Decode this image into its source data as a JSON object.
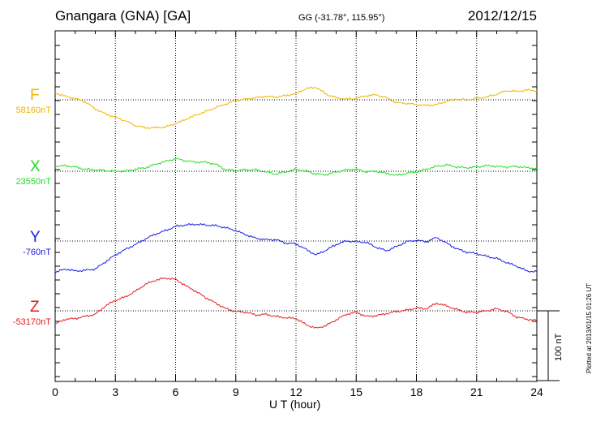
{
  "header": {
    "station": "Gnangara (GNA)  [GA]",
    "coords": "GG (-31.78°, 115.95°)",
    "date": "2012/12/15"
  },
  "credit": "Plotted at 2013/01/15 01:26 UT",
  "chart_data": {
    "type": "line",
    "xlabel": "U T (hour)",
    "xlim": [
      0,
      24
    ],
    "xticks": [
      "0",
      "3",
      "6",
      "9",
      "12",
      "15",
      "18",
      "21",
      "24"
    ],
    "scale_bar": "100 nT",
    "grid": true,
    "series": [
      {
        "name": "F",
        "baseline_label": "58160nT",
        "color": "#f0b400",
        "baseline_nT": 58160,
        "unit": "nT deviation from baseline",
        "points": [
          [
            0,
            10
          ],
          [
            0.5,
            5
          ],
          [
            1,
            2
          ],
          [
            1.5,
            -3
          ],
          [
            2,
            -13
          ],
          [
            2.5,
            -20
          ],
          [
            3,
            -25
          ],
          [
            3.5,
            -30
          ],
          [
            4,
            -37
          ],
          [
            4.5,
            -40
          ],
          [
            5,
            -40
          ],
          [
            5.5,
            -39
          ],
          [
            6,
            -34
          ],
          [
            6.5,
            -28
          ],
          [
            7,
            -22
          ],
          [
            7.5,
            -17
          ],
          [
            8,
            -11
          ],
          [
            8.5,
            -6
          ],
          [
            9,
            -1
          ],
          [
            9.5,
            1
          ],
          [
            10,
            3
          ],
          [
            10.5,
            5
          ],
          [
            11,
            4
          ],
          [
            11.5,
            6
          ],
          [
            12,
            9
          ],
          [
            12.5,
            16
          ],
          [
            13,
            18
          ],
          [
            13.5,
            8
          ],
          [
            14,
            3
          ],
          [
            14.5,
            1
          ],
          [
            15,
            2
          ],
          [
            15.5,
            6
          ],
          [
            16,
            7
          ],
          [
            16.5,
            3
          ],
          [
            17,
            -4
          ],
          [
            17.5,
            -5
          ],
          [
            18,
            -7
          ],
          [
            18.5,
            -8
          ],
          [
            19,
            -7
          ],
          [
            19.5,
            -2
          ],
          [
            20,
            1
          ],
          [
            20.5,
            0
          ],
          [
            21,
            2
          ],
          [
            21.5,
            4
          ],
          [
            22,
            8
          ],
          [
            22.5,
            13
          ],
          [
            23,
            12
          ],
          [
            23.5,
            14
          ],
          [
            24,
            13
          ]
        ]
      },
      {
        "name": "X",
        "baseline_label": "23550nT",
        "color": "#22dd22",
        "baseline_nT": 23550,
        "unit": "nT deviation from baseline",
        "points": [
          [
            0,
            7
          ],
          [
            0.5,
            8
          ],
          [
            1,
            6
          ],
          [
            1.5,
            3
          ],
          [
            2,
            2
          ],
          [
            2.5,
            1
          ],
          [
            3,
            0
          ],
          [
            3.5,
            0
          ],
          [
            4,
            3
          ],
          [
            4.5,
            5
          ],
          [
            5,
            10
          ],
          [
            5.5,
            14
          ],
          [
            6,
            18
          ],
          [
            6.5,
            15
          ],
          [
            7,
            13
          ],
          [
            7.5,
            13
          ],
          [
            8,
            10
          ],
          [
            8.5,
            2
          ],
          [
            9,
            1
          ],
          [
            9.5,
            2
          ],
          [
            10,
            2
          ],
          [
            10.5,
            -1
          ],
          [
            11,
            -4
          ],
          [
            11.5,
            -1
          ],
          [
            12,
            3
          ],
          [
            12.5,
            0
          ],
          [
            13,
            -4
          ],
          [
            13.5,
            -5
          ],
          [
            14,
            -1
          ],
          [
            14.5,
            2
          ],
          [
            15,
            3
          ],
          [
            15.5,
            -1
          ],
          [
            16,
            0
          ],
          [
            16.5,
            -3
          ],
          [
            17,
            -6
          ],
          [
            17.5,
            -3
          ],
          [
            18,
            -1
          ],
          [
            18.5,
            3
          ],
          [
            19,
            7
          ],
          [
            19.5,
            9
          ],
          [
            20,
            6
          ],
          [
            20.5,
            5
          ],
          [
            21,
            6
          ],
          [
            21.5,
            8
          ],
          [
            22,
            7
          ],
          [
            22.5,
            6
          ],
          [
            23,
            7
          ],
          [
            23.5,
            5
          ],
          [
            24,
            4
          ]
        ]
      },
      {
        "name": "Y",
        "baseline_label": "-760nT",
        "color": "#1a1ae6",
        "baseline_nT": -760,
        "unit": "nT deviation from baseline",
        "points": [
          [
            0,
            -45
          ],
          [
            0.5,
            -40
          ],
          [
            1,
            -43
          ],
          [
            1.5,
            -42
          ],
          [
            2,
            -40
          ],
          [
            2.5,
            -30
          ],
          [
            3,
            -20
          ],
          [
            3.5,
            -12
          ],
          [
            4,
            -5
          ],
          [
            4.5,
            3
          ],
          [
            5,
            10
          ],
          [
            5.5,
            15
          ],
          [
            6,
            21
          ],
          [
            6.5,
            23
          ],
          [
            7,
            24
          ],
          [
            7.5,
            23
          ],
          [
            8,
            22
          ],
          [
            8.5,
            19
          ],
          [
            9,
            15
          ],
          [
            9.5,
            9
          ],
          [
            10,
            4
          ],
          [
            10.5,
            2
          ],
          [
            11,
            2
          ],
          [
            11.5,
            -3
          ],
          [
            12,
            -4
          ],
          [
            12.5,
            -12
          ],
          [
            13,
            -20
          ],
          [
            13.5,
            -13
          ],
          [
            14,
            -5
          ],
          [
            14.5,
            0
          ],
          [
            15,
            -1
          ],
          [
            15.5,
            -2
          ],
          [
            16,
            -9
          ],
          [
            16.5,
            -14
          ],
          [
            17,
            -8
          ],
          [
            17.5,
            -1
          ],
          [
            18,
            1
          ],
          [
            18.5,
            -1
          ],
          [
            19,
            5
          ],
          [
            19.5,
            -3
          ],
          [
            20,
            -11
          ],
          [
            20.5,
            -16
          ],
          [
            21,
            -18
          ],
          [
            21.5,
            -22
          ],
          [
            22,
            -25
          ],
          [
            22.5,
            -31
          ],
          [
            23,
            -36
          ],
          [
            23.5,
            -43
          ],
          [
            24,
            -44
          ]
        ]
      },
      {
        "name": "Z",
        "baseline_label": "-53170nT",
        "color": "#e61a1a",
        "baseline_nT": -53170,
        "unit": "nT deviation from baseline",
        "points": [
          [
            0,
            -19
          ],
          [
            0.5,
            -12
          ],
          [
            1,
            -11
          ],
          [
            1.5,
            -8
          ],
          [
            2,
            -5
          ],
          [
            2.5,
            7
          ],
          [
            3,
            15
          ],
          [
            3.5,
            20
          ],
          [
            4,
            28
          ],
          [
            4.5,
            38
          ],
          [
            5,
            44
          ],
          [
            5.5,
            47
          ],
          [
            6,
            45
          ],
          [
            6.5,
            36
          ],
          [
            7,
            28
          ],
          [
            7.5,
            19
          ],
          [
            8,
            11
          ],
          [
            8.5,
            3
          ],
          [
            9,
            -1
          ],
          [
            9.5,
            -2
          ],
          [
            10,
            -6
          ],
          [
            10.5,
            -5
          ],
          [
            11,
            -8
          ],
          [
            11.5,
            -10
          ],
          [
            12,
            -11
          ],
          [
            12.5,
            -20
          ],
          [
            13,
            -25
          ],
          [
            13.5,
            -21
          ],
          [
            14,
            -13
          ],
          [
            14.5,
            -5
          ],
          [
            15,
            -2
          ],
          [
            15.5,
            -8
          ],
          [
            16,
            -7
          ],
          [
            16.5,
            -4
          ],
          [
            17,
            -1
          ],
          [
            17.5,
            1
          ],
          [
            18,
            4
          ],
          [
            18.5,
            3
          ],
          [
            19,
            11
          ],
          [
            19.5,
            7
          ],
          [
            20,
            2
          ],
          [
            20.5,
            -2
          ],
          [
            21,
            -2
          ],
          [
            21.5,
            0
          ],
          [
            22,
            3
          ],
          [
            22.5,
            -1
          ],
          [
            23,
            -9
          ],
          [
            23.5,
            -12
          ],
          [
            24,
            -14
          ]
        ]
      }
    ]
  }
}
